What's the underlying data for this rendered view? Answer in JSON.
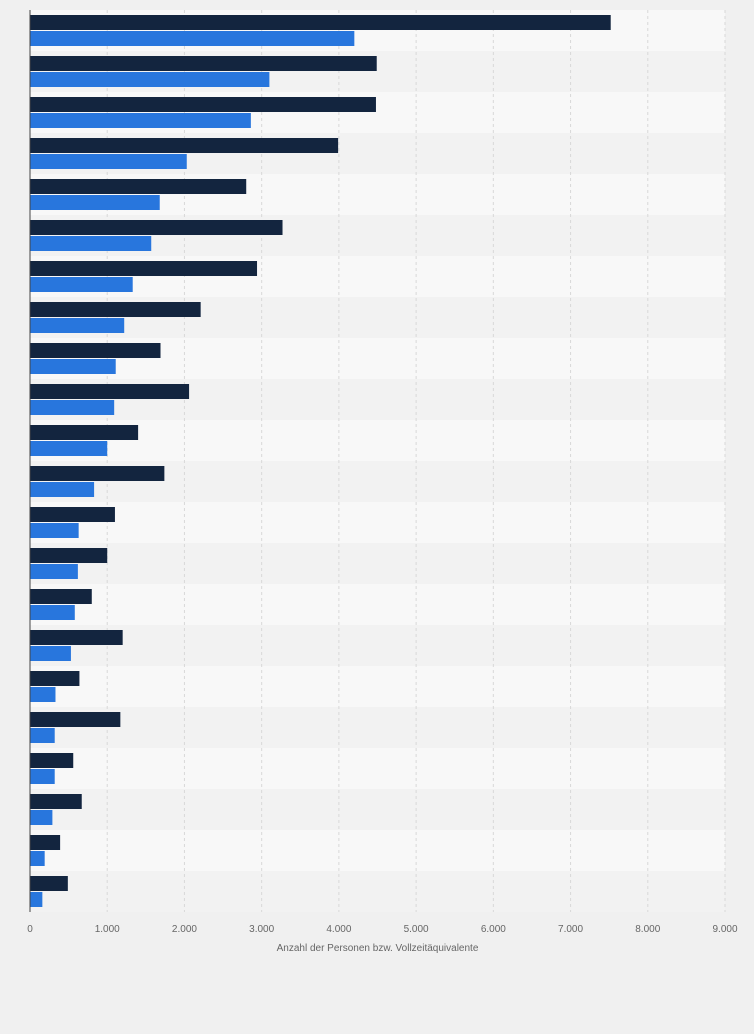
{
  "chart_data": {
    "type": "bar",
    "orientation": "horizontal",
    "title": "",
    "xlabel": "Anzahl der Personen bzw. Vollzeitäquivalente",
    "ylabel": "",
    "xlim": [
      0,
      9000
    ],
    "xticks": [
      "0",
      "1.000",
      "2.000",
      "3.000",
      "4.000",
      "5.000",
      "6.000",
      "7.000",
      "8.000",
      "9.000"
    ],
    "grid": true,
    "legend": "none",
    "categories": [
      "",
      "",
      "",
      "",
      "",
      "",
      "",
      "",
      "",
      "",
      "",
      "",
      "",
      "",
      "",
      "",
      "",
      "",
      "",
      "",
      "",
      ""
    ],
    "series": [
      {
        "color": "#13253f",
        "values": [
          7520,
          4490,
          4480,
          3990,
          2800,
          3270,
          2940,
          2210,
          1690,
          2060,
          1400,
          1740,
          1100,
          1000,
          800,
          1200,
          640,
          1170,
          560,
          670,
          390,
          490
        ]
      },
      {
        "color": "#2876dd",
        "values": [
          4200,
          3100,
          2860,
          2030,
          1680,
          1570,
          1330,
          1220,
          1110,
          1090,
          1000,
          830,
          630,
          620,
          580,
          530,
          330,
          320,
          320,
          290,
          190,
          160
        ]
      }
    ],
    "colors": {
      "background": "#f0f0f0",
      "plot_band_light": "#f8f8f8",
      "plot_band_dark": "#f2f2f2",
      "grid": "#d8d8d8",
      "axis": "#444444",
      "tick_label": "#666666"
    }
  }
}
